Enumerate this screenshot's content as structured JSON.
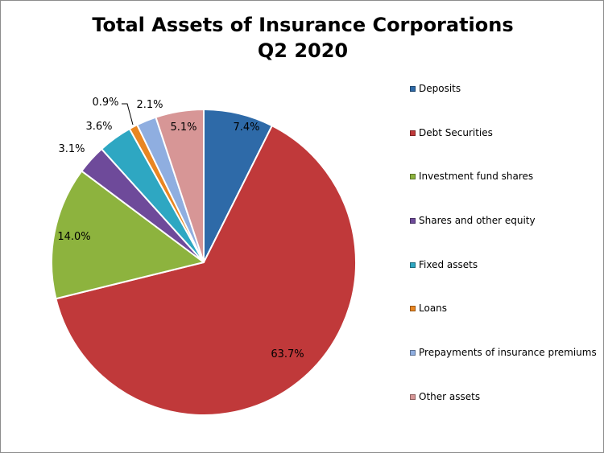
{
  "chart_data": {
    "type": "pie",
    "title": "Total Assets of Insurance Corporations",
    "subtitle": "Q2 2020",
    "legend_position": "right",
    "slices": [
      {
        "name": "Deposits",
        "value": 7.4,
        "label": "7.4%",
        "color": "#2e6aa8"
      },
      {
        "name": "Debt Securities",
        "value": 63.7,
        "label": "63.7%",
        "color": "#c0393a"
      },
      {
        "name": "Investment fund shares",
        "value": 14.0,
        "label": "14.0%",
        "color": "#8db33e"
      },
      {
        "name": "Shares and other equity",
        "value": 3.1,
        "label": "3.1%",
        "color": "#6e4a9a"
      },
      {
        "name": "Fixed assets",
        "value": 3.6,
        "label": "3.6%",
        "color": "#2ea7c2"
      },
      {
        "name": "Loans",
        "value": 0.9,
        "label": "0.9%",
        "color": "#e98622"
      },
      {
        "name": "Prepayments of insurance premiums",
        "value": 2.1,
        "label": "2.1%",
        "color": "#8faee0"
      },
      {
        "name": "Other assets",
        "value": 5.1,
        "label": "5.1%",
        "color": "#d79696"
      }
    ]
  }
}
